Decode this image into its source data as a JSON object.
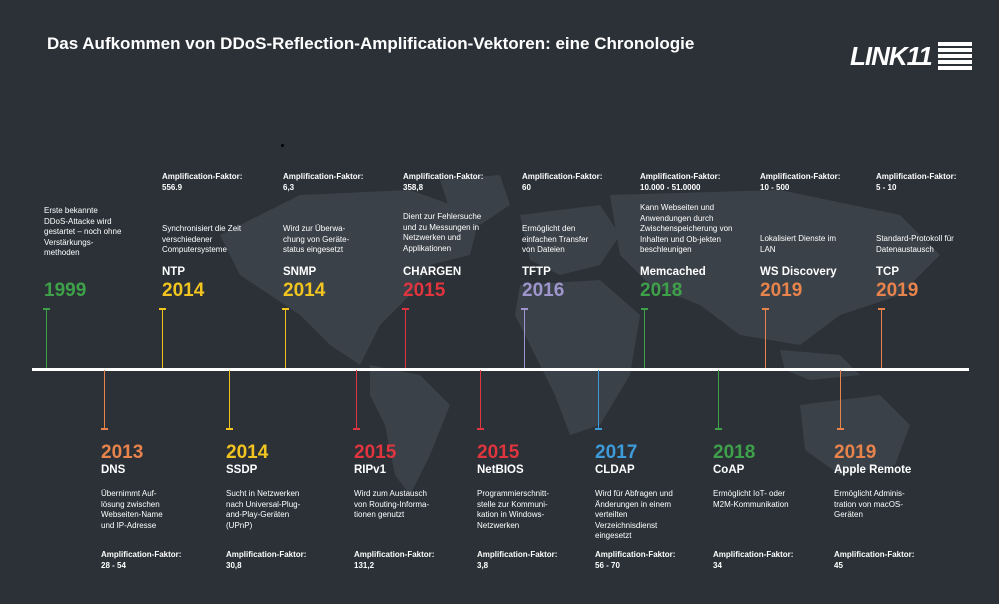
{
  "title": "Das Aufkommen von DDoS-Reflection-Amplification-Vektoren: eine Chronologie",
  "logo": "LINK11",
  "colors": {
    "green": "#3ea14a",
    "yellow": "#f1c41f",
    "red": "#e0343e",
    "lavender": "#9d95cc",
    "orange": "#e8834c",
    "blue": "#3d9bd9"
  },
  "amp_label": "Amplification-Faktor:",
  "top_events": [
    {
      "year": "1999",
      "name": "",
      "desc": "Erste bekannte DDoS-Attacke wird gestartet – noch ohne Verstärkungs-methoden",
      "amp": "",
      "color": "#3ea14a"
    },
    {
      "year": "2014",
      "name": "NTP",
      "desc": "Synchronisiert die Zeit verschiedener Computersysteme",
      "amp": "556.9",
      "color": "#f1c41f"
    },
    {
      "year": "2014",
      "name": "SNMP",
      "desc": "Wird zur Überwa-chung von Geräte-status eingesetzt",
      "amp": "6,3",
      "color": "#f1c41f"
    },
    {
      "year": "2015",
      "name": "CHARGEN",
      "desc": "Dient zur Fehlersuche und zu Messungen in Netzwerken und Applikationen",
      "amp": "358,8",
      "color": "#e0343e"
    },
    {
      "year": "2016",
      "name": "TFTP",
      "desc": "Ermöglicht den einfachen Transfer von Dateien",
      "amp": "60",
      "color": "#9d95cc"
    },
    {
      "year": "2018",
      "name": "Memcached",
      "desc": "Kann Webseiten und Anwendungen durch Zwischenspeicherung von Inhalten und Ob-jekten beschleunigen",
      "amp": "10.000 - 51.0000",
      "color": "#3ea14a"
    },
    {
      "year": "2019",
      "name": "WS Discovery",
      "desc": "Lokalisiert Dienste im LAN",
      "amp": "10 - 500",
      "color": "#e8834c"
    },
    {
      "year": "2019",
      "name": "TCP",
      "desc": "Standard-Protokoll für Datenaustausch",
      "amp": "5 - 10",
      "color": "#e8834c"
    }
  ],
  "bottom_events": [
    {
      "year": "2013",
      "name": "DNS",
      "desc": "Übernimmt Auf-lösung zwischen Webseiten-Name und IP-Adresse",
      "amp": "28 - 54",
      "color": "#e8834c"
    },
    {
      "year": "2014",
      "name": "SSDP",
      "desc": "Sucht in Netzwerken nach Universal-Plug-and-Play-Geräten (UPnP)",
      "amp": "30,8",
      "color": "#f1c41f"
    },
    {
      "year": "2015",
      "name": "RIPv1",
      "desc": "Wird zum Austausch von Routing-Informa-tionen genutzt",
      "amp": "131,2",
      "color": "#e0343e"
    },
    {
      "year": "2015",
      "name": "NetBIOS",
      "desc": "Programmierschnitt-stelle zur Kommuni-kation in Windows-Netzwerken",
      "amp": "3,8",
      "color": "#e0343e"
    },
    {
      "year": "2017",
      "name": "CLDAP",
      "desc": "Wird für Abfragen und Änderungen in einem verteilten Verzeichnisdienst eingesetzt",
      "amp": "56 - 70",
      "color": "#3d9bd9"
    },
    {
      "year": "2018",
      "name": "CoAP",
      "desc": "Ermöglicht IoT- oder M2M-Kommunikation",
      "amp": "34",
      "color": "#3ea14a"
    },
    {
      "year": "2019",
      "name": "Apple Remote",
      "desc": "Ermöglicht Adminis-tration von macOS-Geräten",
      "amp": "45",
      "color": "#e8834c"
    }
  ]
}
